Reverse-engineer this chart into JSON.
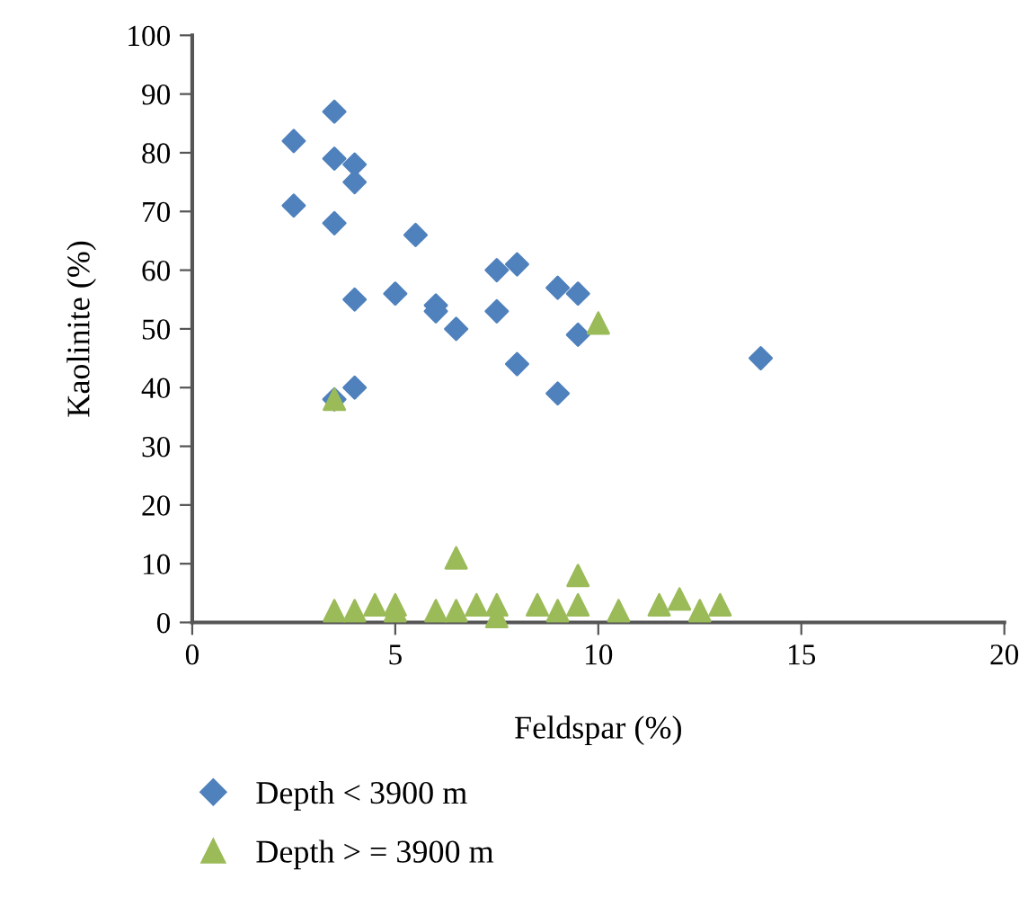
{
  "chart_data": {
    "type": "scatter",
    "xlabel": "Feldspar (%)",
    "ylabel": "Kaolinite (%)",
    "xlim": [
      0,
      20
    ],
    "ylim": [
      0,
      100
    ],
    "xticks": [
      0,
      5,
      10,
      15,
      20
    ],
    "yticks": [
      0,
      10,
      20,
      30,
      40,
      50,
      60,
      70,
      80,
      90,
      100
    ],
    "grid": false,
    "legend": "bottom",
    "series": [
      {
        "name": "Depth < 3900 m",
        "color": "#4f81bd",
        "marker": "diamond",
        "x": [
          2.5,
          2.5,
          3.5,
          3.5,
          3.5,
          3.5,
          4,
          4,
          4,
          4,
          5,
          5.5,
          6,
          6,
          6.5,
          7.5,
          7.5,
          8,
          8,
          9,
          9,
          9.5,
          9.5,
          14
        ],
        "values": [
          82,
          71,
          87,
          79,
          68,
          38,
          78,
          75,
          55,
          40,
          56,
          66,
          54,
          53,
          50,
          60,
          53,
          61,
          44,
          57,
          39,
          56,
          49,
          45
        ]
      },
      {
        "name": "Depth > = 3900 m",
        "color": "#9bbb59",
        "marker": "triangle",
        "x": [
          3.5,
          3.5,
          4,
          4.5,
          5,
          5,
          6,
          6.5,
          6.5,
          7,
          7.5,
          7.5,
          8.5,
          9,
          9.5,
          9.5,
          10,
          10.5,
          11.5,
          12,
          12.5,
          13
        ],
        "values": [
          38,
          2,
          2,
          3,
          3,
          2,
          2,
          2,
          11,
          3,
          3,
          1,
          3,
          2,
          8,
          3,
          51,
          2,
          3,
          4,
          2,
          3
        ]
      }
    ]
  }
}
